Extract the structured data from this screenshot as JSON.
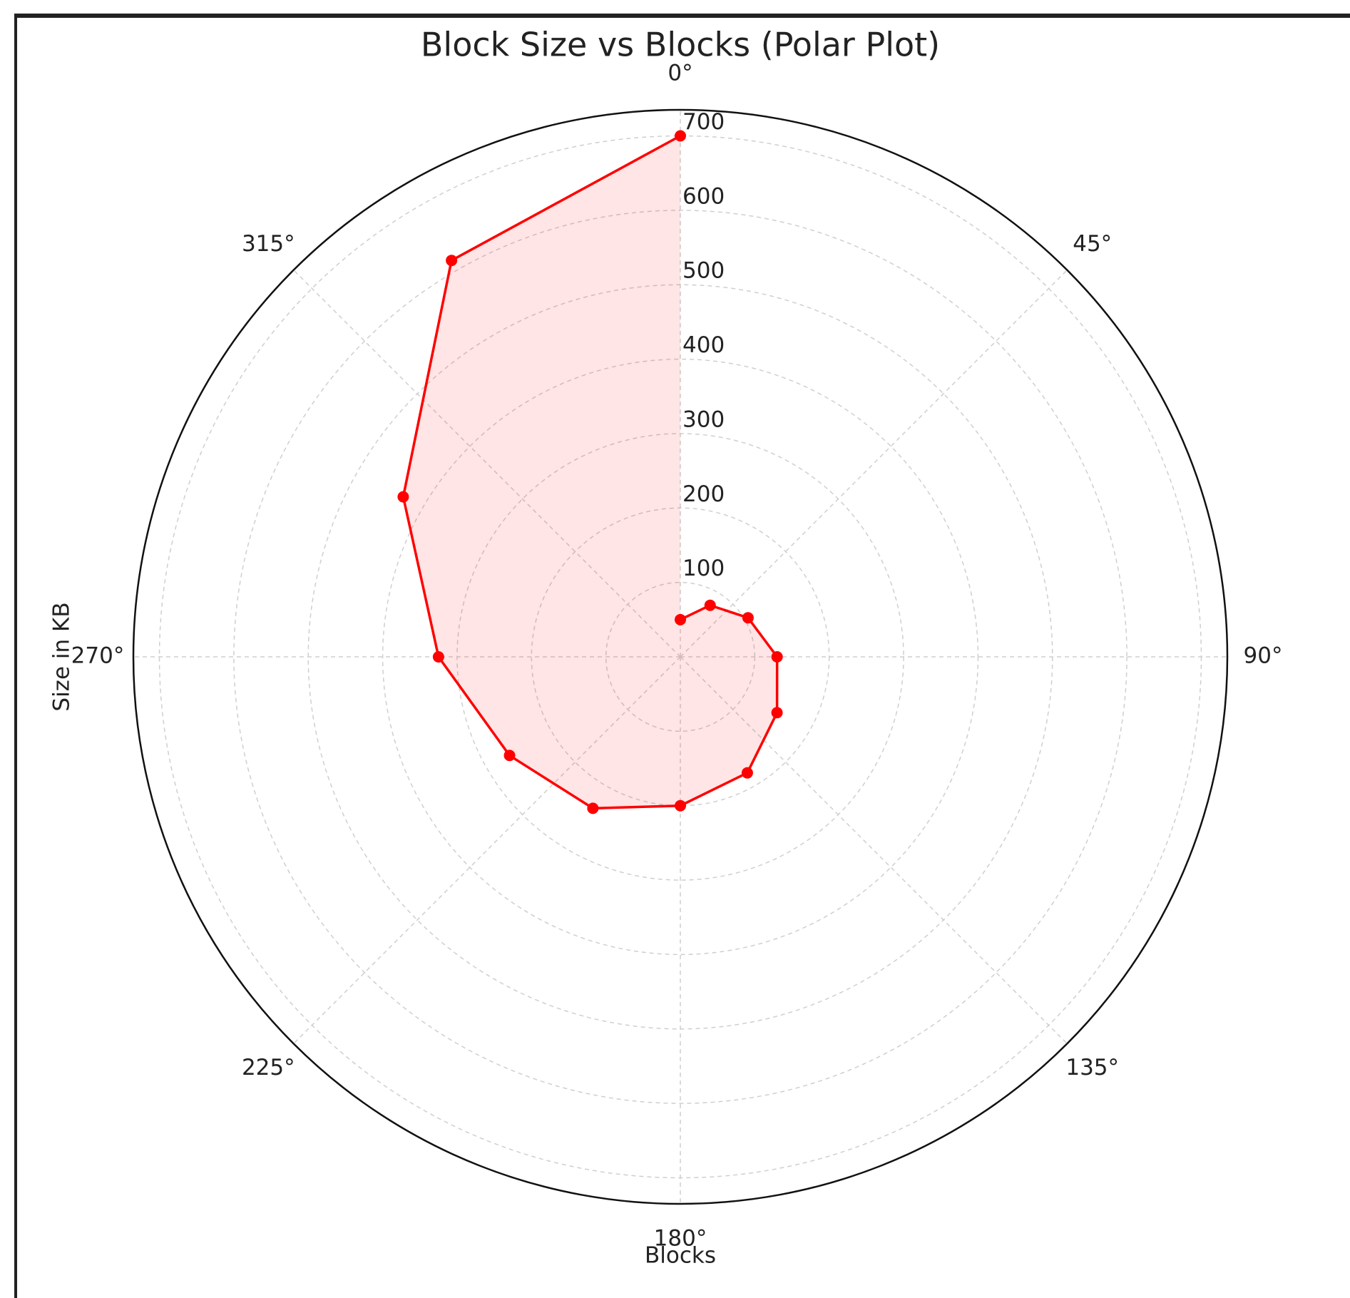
{
  "chart_data": {
    "type": "polar",
    "title": "Block Size vs Blocks (Polar Plot)",
    "xlabel": "Blocks",
    "ylabel": "Size in KB",
    "x": [
      0,
      30,
      60,
      90,
      120,
      150,
      180,
      210,
      240,
      270,
      300,
      330,
      360
    ],
    "values": [
      50,
      80,
      105,
      130,
      150,
      180,
      200,
      235,
      265,
      325,
      430,
      615,
      700
    ],
    "color": "#ff0000",
    "fill": true,
    "ylim": [
      0,
      735
    ],
    "yticks": [
      100,
      200,
      300,
      400,
      500,
      600,
      700
    ],
    "xticks": [
      {
        "value": 0,
        "label": "0°"
      },
      {
        "value": 45,
        "label": "45°"
      },
      {
        "value": 90,
        "label": "90°"
      },
      {
        "value": 135,
        "label": "135°"
      },
      {
        "value": 180,
        "label": "180°"
      },
      {
        "value": 225,
        "label": "225°"
      },
      {
        "value": 270,
        "label": "270°"
      },
      {
        "value": 315,
        "label": "315°"
      }
    ],
    "grid": true
  }
}
